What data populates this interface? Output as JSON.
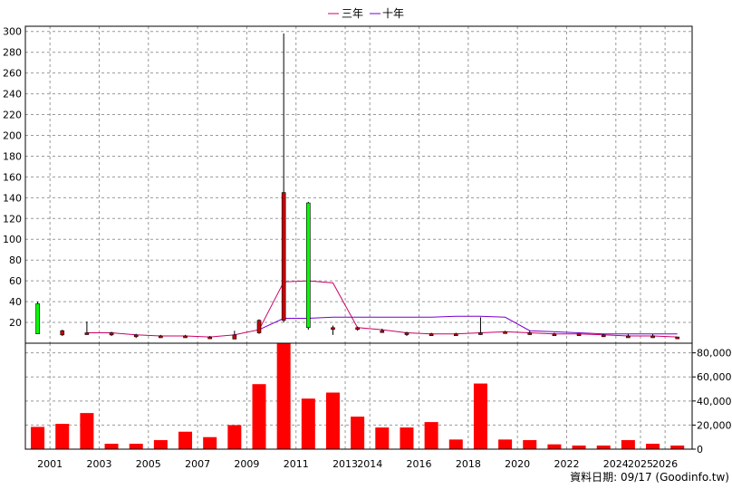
{
  "chart_data": [
    {
      "type": "candlestick-line",
      "legend": [
        "三年",
        "十年"
      ],
      "legend_position": "top-center",
      "ylim": [
        0,
        305
      ],
      "yticks": [
        20,
        40,
        60,
        80,
        100,
        120,
        140,
        160,
        180,
        200,
        220,
        240,
        260,
        280,
        300
      ],
      "grid": true,
      "candles": [
        {
          "x": 2000.5,
          "open": 38,
          "close": 9,
          "high": 40,
          "low": 9,
          "color": "#00ff00"
        },
        {
          "x": 2001.5,
          "open": 12,
          "close": 8,
          "high": 13,
          "low": 7,
          "color": "#cc0000"
        },
        {
          "x": 2002.5,
          "open": 10,
          "close": 10,
          "high": 21,
          "low": 10,
          "color": "#cc0000"
        },
        {
          "x": 2003.5,
          "open": 10,
          "close": 8,
          "high": 11,
          "low": 7,
          "color": "#cc0000"
        },
        {
          "x": 2004.5,
          "open": 8,
          "close": 7,
          "high": 9,
          "low": 5,
          "color": "#cc0000"
        },
        {
          "x": 2005.5,
          "open": 7,
          "close": 7,
          "high": 8,
          "low": 6,
          "color": "#cc0000"
        },
        {
          "x": 2006.5,
          "open": 7,
          "close": 7,
          "high": 8,
          "low": 6,
          "color": "#cc0000"
        },
        {
          "x": 2007.5,
          "open": 6,
          "close": 6,
          "high": 7,
          "low": 5,
          "color": "#cc0000"
        },
        {
          "x": 2008.5,
          "open": 8,
          "close": 4,
          "high": 12,
          "low": 4,
          "color": "#cc0000"
        },
        {
          "x": 2009.5,
          "open": 22,
          "close": 10,
          "high": 23,
          "low": 9,
          "color": "#cc0000"
        },
        {
          "x": 2010.5,
          "open": 145,
          "close": 22,
          "high": 298,
          "low": 20,
          "color": "#cc0000"
        },
        {
          "x": 2011.5,
          "open": 135,
          "close": 15,
          "high": 136,
          "low": 13,
          "color": "#00ff00"
        },
        {
          "x": 2012.5,
          "open": 15,
          "close": 15,
          "high": 17,
          "low": 8,
          "color": "#cc0000"
        },
        {
          "x": 2013.5,
          "open": 15,
          "close": 14,
          "high": 16,
          "low": 12,
          "color": "#cc0000"
        },
        {
          "x": 2014.5,
          "open": 12,
          "close": 12,
          "high": 14,
          "low": 10,
          "color": "#cc0000"
        },
        {
          "x": 2015.5,
          "open": 10,
          "close": 9,
          "high": 11,
          "low": 7,
          "color": "#cc0000"
        },
        {
          "x": 2016.5,
          "open": 9,
          "close": 9,
          "high": 10,
          "low": 8,
          "color": "#cc0000"
        },
        {
          "x": 2017.5,
          "open": 9,
          "close": 9,
          "high": 10,
          "low": 8,
          "color": "#cc0000"
        },
        {
          "x": 2018.5,
          "open": 10,
          "close": 9,
          "high": 25,
          "low": 8,
          "color": "#cc0000"
        },
        {
          "x": 2019.5,
          "open": 11,
          "close": 11,
          "high": 12,
          "low": 10,
          "color": "#cc0000"
        },
        {
          "x": 2020.5,
          "open": 10,
          "close": 10,
          "high": 12,
          "low": 8,
          "color": "#cc0000"
        },
        {
          "x": 2021.5,
          "open": 9,
          "close": 9,
          "high": 10,
          "low": 8,
          "color": "#cc0000"
        },
        {
          "x": 2022.5,
          "open": 9,
          "close": 9,
          "high": 9,
          "low": 8,
          "color": "#cc0000"
        },
        {
          "x": 2023.5,
          "open": 8,
          "close": 8,
          "high": 9,
          "low": 6,
          "color": "#cc0000"
        },
        {
          "x": 2024.5,
          "open": 7,
          "close": 7,
          "high": 9,
          "low": 6,
          "color": "#cc0000"
        },
        {
          "x": 2025.5,
          "open": 7,
          "close": 7,
          "high": 9,
          "low": 6,
          "color": "#cc0000"
        },
        {
          "x": 2026.5,
          "open": 6,
          "close": 5,
          "high": 6,
          "low": 4,
          "color": "#cc0000"
        }
      ],
      "series": [
        {
          "name": "三年",
          "color": "#cc0066",
          "points": [
            [
              2002.5,
              10
            ],
            [
              2003.5,
              10
            ],
            [
              2004.5,
              8
            ],
            [
              2005.5,
              7
            ],
            [
              2006.5,
              7
            ],
            [
              2007.5,
              6
            ],
            [
              2008.5,
              8
            ],
            [
              2009.5,
              13
            ],
            [
              2010.5,
              59
            ],
            [
              2011.5,
              60
            ],
            [
              2012.5,
              58
            ],
            [
              2013.5,
              15
            ],
            [
              2014.5,
              13
            ],
            [
              2015.5,
              10
            ],
            [
              2016.5,
              9
            ],
            [
              2017.5,
              9
            ],
            [
              2018.5,
              10
            ],
            [
              2019.5,
              11
            ],
            [
              2020.5,
              10
            ],
            [
              2021.5,
              9
            ],
            [
              2022.5,
              9
            ],
            [
              2023.5,
              8
            ],
            [
              2024.5,
              7
            ],
            [
              2025.5,
              7
            ],
            [
              2026.5,
              6
            ]
          ]
        },
        {
          "name": "十年",
          "color": "#7700cc",
          "points": [
            [
              2009.5,
              13
            ],
            [
              2010.5,
              24
            ],
            [
              2011.5,
              24
            ],
            [
              2012.5,
              25
            ],
            [
              2013.5,
              25
            ],
            [
              2014.5,
              25
            ],
            [
              2015.5,
              25
            ],
            [
              2016.5,
              25
            ],
            [
              2017.5,
              26
            ],
            [
              2018.5,
              26
            ],
            [
              2019.5,
              25
            ],
            [
              2020.5,
              12
            ],
            [
              2021.5,
              11
            ],
            [
              2022.5,
              10
            ],
            [
              2023.5,
              9
            ],
            [
              2024.5,
              9
            ],
            [
              2025.5,
              9
            ],
            [
              2026.5,
              9
            ]
          ]
        }
      ]
    },
    {
      "type": "bar",
      "ylim": [
        0,
        88000
      ],
      "yticks": [
        "0",
        "20,000",
        "40,000",
        "60,000",
        "80,000"
      ],
      "ytick_values": [
        0,
        20000,
        40000,
        60000,
        80000
      ],
      "grid": true,
      "bar_color": "#ff0000",
      "x": [
        2000.5,
        2001.5,
        2002.5,
        2003.5,
        2004.5,
        2005.5,
        2006.5,
        2007.5,
        2008.5,
        2009.5,
        2010.5,
        2011.5,
        2012.5,
        2013.5,
        2014.5,
        2015.5,
        2016.5,
        2017.5,
        2018.5,
        2019.5,
        2020.5,
        2021.5,
        2022.5,
        2023.5,
        2024.5,
        2025.5,
        2026.5
      ],
      "values": [
        18500,
        21000,
        30000,
        4500,
        4500,
        7500,
        14500,
        10000,
        20000,
        54000,
        88000,
        42000,
        47000,
        27000,
        18000,
        18000,
        22500,
        8000,
        54500,
        8000,
        7500,
        4000,
        3000,
        3000,
        7500,
        4500,
        3000
      ]
    }
  ],
  "x_tick_labels": [
    {
      "x": 2001,
      "label": "2001"
    },
    {
      "x": 2003,
      "label": "2003"
    },
    {
      "x": 2005,
      "label": "2005"
    },
    {
      "x": 2007,
      "label": "2007"
    },
    {
      "x": 2009,
      "label": "2009"
    },
    {
      "x": 2011,
      "label": "2011"
    },
    {
      "x": 2013,
      "label": "2013"
    },
    {
      "x": 2014,
      "label": "2014"
    },
    {
      "x": 2016,
      "label": "2016"
    },
    {
      "x": 2018,
      "label": "2018"
    },
    {
      "x": 2020,
      "label": "2020"
    },
    {
      "x": 2022,
      "label": "2022"
    },
    {
      "x": 2024,
      "label": "2024"
    },
    {
      "x": 2025,
      "label": "2025"
    },
    {
      "x": 2026,
      "label": "2026"
    }
  ],
  "credit": "資料日期: 09/17  (Goodinfo.tw)",
  "colors": {
    "grid": "#999999",
    "frame": "#000000",
    "background": "#ffffff"
  }
}
